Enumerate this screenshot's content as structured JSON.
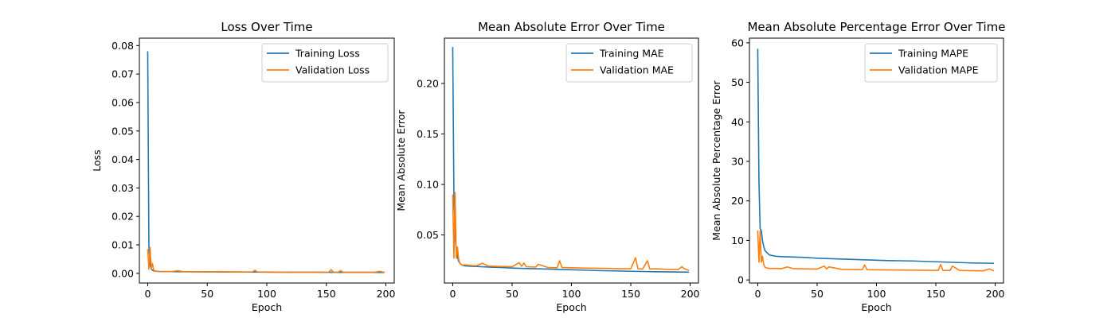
{
  "chart_data": [
    {
      "type": "line",
      "title": "Loss Over Time",
      "xlabel": "Epoch",
      "ylabel": "Loss",
      "xlim": [
        -7,
        207
      ],
      "ylim": [
        -0.0034,
        0.0826
      ],
      "xticks": [
        0,
        50,
        100,
        150,
        200
      ],
      "xtick_labels": [
        "0",
        "50",
        "100",
        "150",
        "200"
      ],
      "yticks": [
        0.0,
        0.01,
        0.02,
        0.03,
        0.04,
        0.05,
        0.06,
        0.07,
        0.08
      ],
      "ytick_labels": [
        "0.00",
        "0.01",
        "0.02",
        "0.03",
        "0.04",
        "0.05",
        "0.06",
        "0.07",
        "0.08"
      ],
      "legend_position": "top-right",
      "series": [
        {
          "name": "Training Loss",
          "color": "#1f77b4",
          "x": [
            0,
            1,
            2,
            3,
            4,
            5,
            6,
            8,
            10,
            15,
            20,
            30,
            40,
            50,
            60,
            70,
            80,
            90,
            100,
            120,
            140,
            160,
            180,
            199
          ],
          "y": [
            0.078,
            0.0095,
            0.003,
            0.0015,
            0.0011,
            0.0009,
            0.0008,
            0.0007,
            0.00065,
            0.0006,
            0.00058,
            0.00056,
            0.00054,
            0.00052,
            0.0005,
            0.00048,
            0.00046,
            0.00045,
            0.00043,
            0.0004,
            0.00038,
            0.00036,
            0.00034,
            0.00033
          ]
        },
        {
          "name": "Validation Loss",
          "color": "#ff7f0e",
          "x": [
            0,
            1,
            2,
            3,
            4,
            5,
            6,
            8,
            10,
            15,
            20,
            25,
            30,
            40,
            50,
            60,
            70,
            80,
            88,
            90,
            92,
            100,
            120,
            140,
            152,
            154,
            156,
            160,
            162,
            164,
            170,
            180,
            190,
            195,
            199
          ],
          "y": [
            0.0085,
            0.0015,
            0.009,
            0.0015,
            0.0035,
            0.0012,
            0.0008,
            0.0007,
            0.00065,
            0.0006,
            0.0006,
            0.0009,
            0.0006,
            0.00055,
            0.0005,
            0.0006,
            0.0005,
            0.00045,
            0.0005,
            0.0011,
            0.0005,
            0.00045,
            0.0004,
            0.0004,
            0.0004,
            0.0013,
            0.0004,
            0.0004,
            0.001,
            0.0004,
            0.00035,
            0.00035,
            0.00035,
            0.0007,
            0.0003
          ]
        }
      ]
    },
    {
      "type": "line",
      "title": "Mean Absolute Error Over Time",
      "xlabel": "Epoch",
      "ylabel": "Mean Absolute Error",
      "xlim": [
        -7,
        207
      ],
      "ylim": [
        0.0024,
        0.2448
      ],
      "xticks": [
        0,
        50,
        100,
        150,
        200
      ],
      "xtick_labels": [
        "0",
        "50",
        "100",
        "150",
        "200"
      ],
      "yticks": [
        0.05,
        0.1,
        0.15,
        0.2
      ],
      "ytick_labels": [
        "0.05",
        "0.10",
        "0.15",
        "0.20"
      ],
      "legend_position": "top-right",
      "series": [
        {
          "name": "Training MAE",
          "color": "#1f77b4",
          "x": [
            0,
            1,
            2,
            3,
            4,
            5,
            6,
            8,
            10,
            15,
            20,
            30,
            40,
            50,
            60,
            70,
            80,
            90,
            100,
            110,
            120,
            130,
            140,
            150,
            160,
            170,
            180,
            190,
            199
          ],
          "y": [
            0.236,
            0.09,
            0.05,
            0.035,
            0.028,
            0.024,
            0.022,
            0.02,
            0.0195,
            0.019,
            0.0188,
            0.0182,
            0.0178,
            0.0172,
            0.0168,
            0.0165,
            0.0162,
            0.0158,
            0.0155,
            0.0152,
            0.0148,
            0.0145,
            0.0143,
            0.014,
            0.0138,
            0.0136,
            0.0135,
            0.0133,
            0.0132
          ]
        },
        {
          "name": "Validation MAE",
          "color": "#ff7f0e",
          "x": [
            0,
            1,
            2,
            3,
            4,
            5,
            6,
            8,
            10,
            15,
            20,
            25,
            30,
            40,
            50,
            56,
            58,
            60,
            62,
            70,
            72,
            80,
            88,
            90,
            92,
            100,
            110,
            120,
            130,
            140,
            150,
            154,
            156,
            160,
            164,
            166,
            170,
            180,
            190,
            193,
            195,
            199
          ],
          "y": [
            0.09,
            0.027,
            0.092,
            0.027,
            0.038,
            0.026,
            0.022,
            0.02,
            0.0205,
            0.0198,
            0.0195,
            0.022,
            0.0192,
            0.0188,
            0.0185,
            0.0225,
            0.019,
            0.0222,
            0.0185,
            0.0182,
            0.021,
            0.0178,
            0.0175,
            0.0245,
            0.0178,
            0.0175,
            0.0172,
            0.017,
            0.0168,
            0.0165,
            0.0165,
            0.0275,
            0.0165,
            0.0162,
            0.0245,
            0.0162,
            0.0165,
            0.016,
            0.0158,
            0.0185,
            0.0165,
            0.015
          ]
        }
      ]
    },
    {
      "type": "line",
      "title": "Mean Absolute Percentage Error Over Time",
      "xlabel": "Epoch",
      "ylabel": "Mean Absolute Percentage Error",
      "xlim": [
        -7,
        207
      ],
      "ylim": [
        -0.78,
        61.18
      ],
      "xticks": [
        0,
        50,
        100,
        150,
        200
      ],
      "xtick_labels": [
        "0",
        "50",
        "100",
        "150",
        "200"
      ],
      "yticks": [
        0,
        10,
        20,
        30,
        40,
        50,
        60
      ],
      "ytick_labels": [
        "0",
        "10",
        "20",
        "30",
        "40",
        "50",
        "60"
      ],
      "legend_position": "top-right",
      "series": [
        {
          "name": "Training MAPE",
          "color": "#1f77b4",
          "x": [
            0,
            1,
            2,
            3,
            4,
            5,
            6,
            8,
            10,
            15,
            20,
            30,
            40,
            50,
            60,
            70,
            80,
            90,
            100,
            110,
            120,
            130,
            140,
            150,
            160,
            170,
            180,
            190,
            199
          ],
          "y": [
            58.5,
            25,
            13,
            12.5,
            10,
            8.5,
            7.5,
            6.8,
            6.3,
            6.0,
            5.9,
            5.8,
            5.7,
            5.5,
            5.4,
            5.3,
            5.2,
            5.1,
            5.0,
            4.9,
            4.85,
            4.8,
            4.7,
            4.6,
            4.5,
            4.4,
            4.3,
            4.25,
            4.2
          ]
        },
        {
          "name": "Validation MAPE",
          "color": "#ff7f0e",
          "x": [
            0,
            1,
            2,
            3,
            4,
            5,
            6,
            8,
            10,
            15,
            20,
            25,
            30,
            40,
            50,
            56,
            58,
            60,
            70,
            80,
            88,
            90,
            92,
            100,
            120,
            140,
            152,
            154,
            156,
            162,
            164,
            170,
            180,
            190,
            195,
            199
          ],
          "y": [
            12.5,
            4.5,
            12.5,
            4.5,
            6.0,
            4.0,
            3.2,
            3.0,
            2.9,
            2.9,
            2.85,
            3.3,
            2.85,
            2.8,
            2.75,
            3.5,
            2.8,
            3.3,
            2.7,
            2.65,
            2.6,
            3.8,
            2.6,
            2.55,
            2.5,
            2.45,
            2.4,
            3.9,
            2.4,
            2.4,
            3.5,
            2.4,
            2.35,
            2.3,
            2.8,
            2.3
          ]
        }
      ]
    }
  ]
}
